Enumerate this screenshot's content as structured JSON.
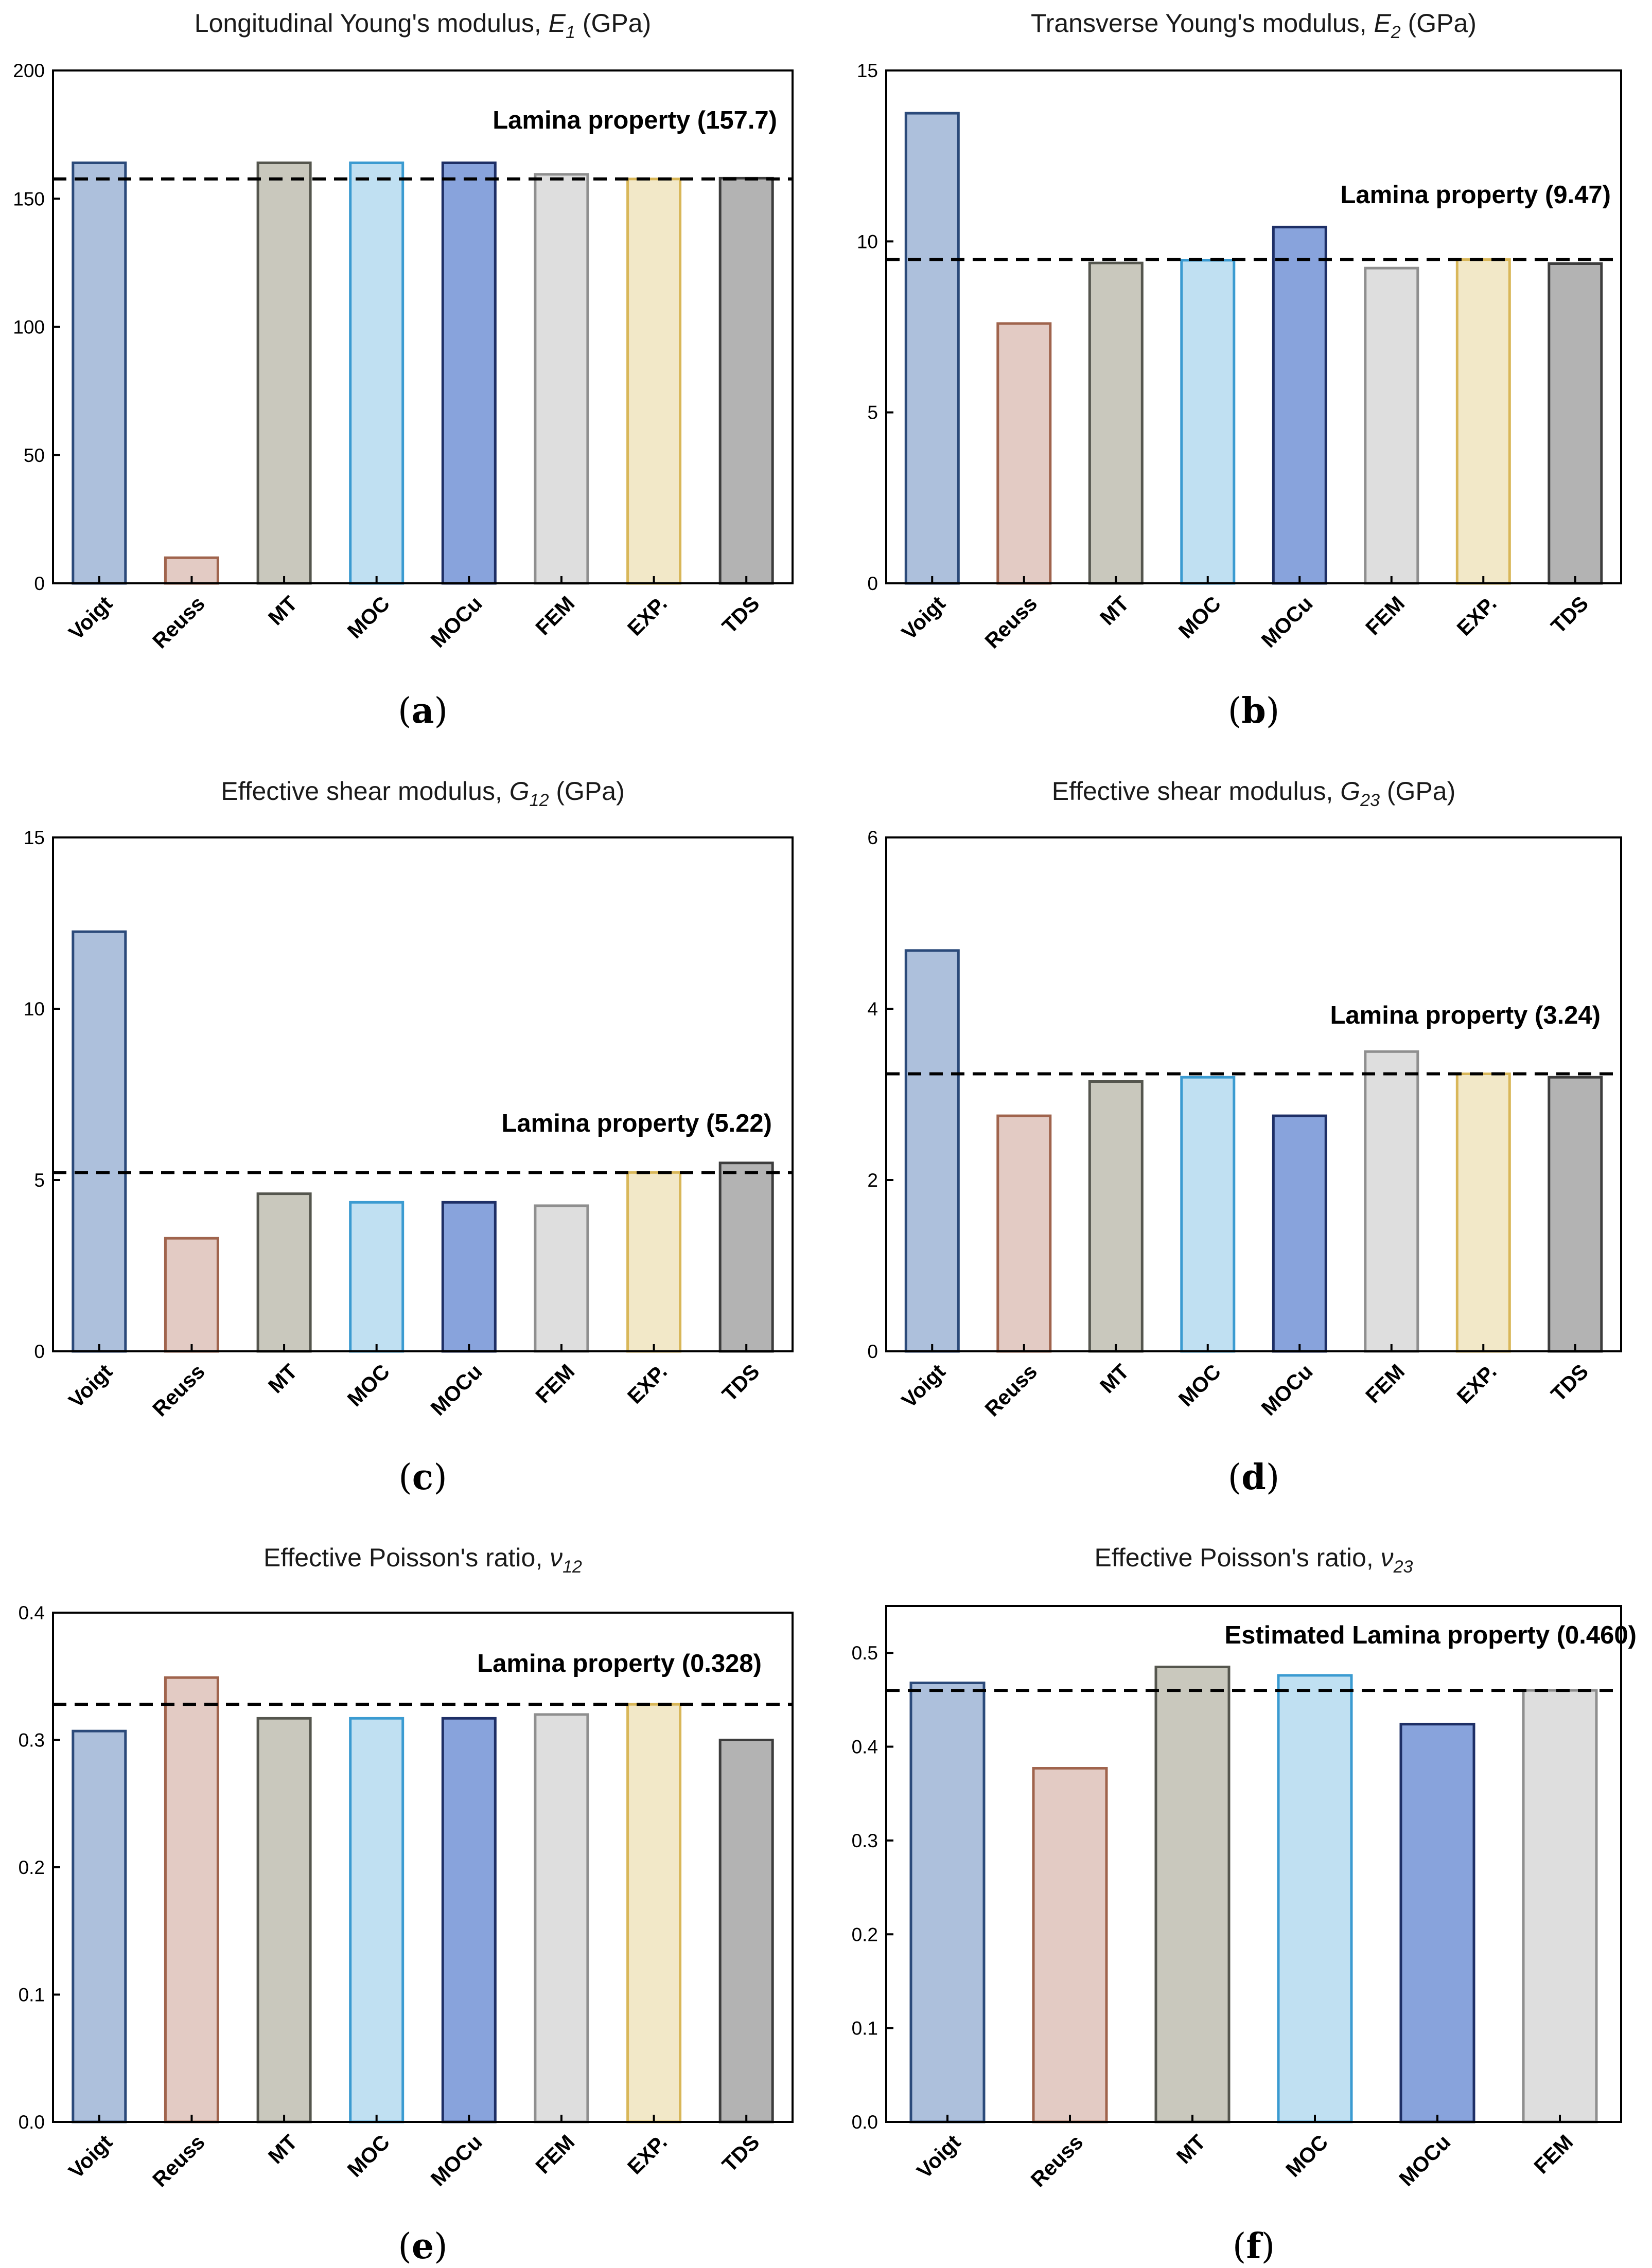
{
  "chart_data": [
    {
      "panel": "a",
      "type": "bar",
      "title": "Longitudinal Young's modulus, ",
      "title_sym": "E",
      "title_sub": "1",
      "title_suffix": " (GPa)",
      "categories": [
        "Voigt",
        "Reuss",
        "MT",
        "MOC",
        "MOCu",
        "FEM",
        "EXP.",
        "TDS"
      ],
      "values": [
        164,
        10,
        164,
        164,
        164,
        159.5,
        157.7,
        158
      ],
      "ylim": [
        0,
        200
      ],
      "yticks": [
        0,
        50,
        100,
        150,
        200
      ],
      "ytick_labels": [
        "0",
        "50",
        "100",
        "150",
        "200"
      ],
      "reference": 157.7,
      "reference_label": "Lamina property (157.7)",
      "label_prefix": "(",
      "label_bold": "a",
      "label_suffix": ")",
      "colors": [
        [
          "#adc0dc",
          "#2b4a7a"
        ],
        [
          "#e3cbc4",
          "#a0644d"
        ],
        [
          "#c9c8bd",
          "#55564e"
        ],
        [
          "#c0e0f2",
          "#3b9bd1"
        ],
        [
          "#88a3dc",
          "#1e2f66"
        ],
        [
          "#dedede",
          "#8f8f8f"
        ],
        [
          "#f2e8c8",
          "#d9b759"
        ],
        [
          "#b3b3b3",
          "#3d3d3d"
        ]
      ]
    },
    {
      "panel": "b",
      "type": "bar",
      "title": "Transverse Young's modulus, ",
      "title_sym": "E",
      "title_sub": "2",
      "title_suffix": " (GPa)",
      "categories": [
        "Voigt",
        "Reuss",
        "MT",
        "MOC",
        "MOCu",
        "FEM",
        "EXP.",
        "TDS"
      ],
      "values": [
        13.75,
        7.6,
        9.37,
        9.45,
        10.42,
        9.22,
        9.47,
        9.35
      ],
      "ylim": [
        0,
        15
      ],
      "yticks": [
        0,
        5,
        10,
        15
      ],
      "ytick_labels": [
        "0",
        "5",
        "10",
        "15"
      ],
      "reference": 9.47,
      "reference_label": "Lamina property (9.47)",
      "label_prefix": "(",
      "label_bold": "b",
      "label_suffix": ")",
      "colors": [
        [
          "#adc0dc",
          "#2b4a7a"
        ],
        [
          "#e3cbc4",
          "#a0644d"
        ],
        [
          "#c9c8bd",
          "#55564e"
        ],
        [
          "#c0e0f2",
          "#3b9bd1"
        ],
        [
          "#88a3dc",
          "#1e2f66"
        ],
        [
          "#dedede",
          "#8f8f8f"
        ],
        [
          "#f2e8c8",
          "#d9b759"
        ],
        [
          "#b3b3b3",
          "#3d3d3d"
        ]
      ]
    },
    {
      "panel": "c",
      "type": "bar",
      "title": "Effective shear modulus, ",
      "title_sym": "G",
      "title_sub": "12",
      "title_suffix": " (GPa)",
      "categories": [
        "Voigt",
        "Reuss",
        "MT",
        "MOC",
        "MOCu",
        "FEM",
        "EXP.",
        "TDS"
      ],
      "values": [
        12.25,
        3.3,
        4.6,
        4.35,
        4.35,
        4.25,
        5.22,
        5.5
      ],
      "ylim": [
        0,
        15
      ],
      "yticks": [
        0,
        5,
        10,
        15
      ],
      "ytick_labels": [
        "0",
        "5",
        "10",
        "15"
      ],
      "reference": 5.22,
      "reference_label": "Lamina property (5.22)",
      "label_prefix": "(",
      "label_bold": "c",
      "label_suffix": ")",
      "colors": [
        [
          "#adc0dc",
          "#2b4a7a"
        ],
        [
          "#e3cbc4",
          "#a0644d"
        ],
        [
          "#c9c8bd",
          "#55564e"
        ],
        [
          "#c0e0f2",
          "#3b9bd1"
        ],
        [
          "#88a3dc",
          "#1e2f66"
        ],
        [
          "#dedede",
          "#8f8f8f"
        ],
        [
          "#f2e8c8",
          "#d9b759"
        ],
        [
          "#b3b3b3",
          "#3d3d3d"
        ]
      ]
    },
    {
      "panel": "d",
      "type": "bar",
      "title": "Effective shear modulus, ",
      "title_sym": "G",
      "title_sub": "23",
      "title_suffix": " (GPa)",
      "categories": [
        "Voigt",
        "Reuss",
        "MT",
        "MOC",
        "MOCu",
        "FEM",
        "EXP.",
        "TDS"
      ],
      "values": [
        4.68,
        2.75,
        3.15,
        3.2,
        2.75,
        3.5,
        3.24,
        3.2
      ],
      "ylim": [
        0,
        6
      ],
      "yticks": [
        0,
        2,
        4,
        6
      ],
      "ytick_labels": [
        "0",
        "2",
        "4",
        "6"
      ],
      "reference": 3.24,
      "reference_label": "Lamina property (3.24)",
      "label_prefix": "(",
      "label_bold": "d",
      "label_suffix": ")",
      "colors": [
        [
          "#adc0dc",
          "#2b4a7a"
        ],
        [
          "#e3cbc4",
          "#a0644d"
        ],
        [
          "#c9c8bd",
          "#55564e"
        ],
        [
          "#c0e0f2",
          "#3b9bd1"
        ],
        [
          "#88a3dc",
          "#1e2f66"
        ],
        [
          "#dedede",
          "#8f8f8f"
        ],
        [
          "#f2e8c8",
          "#d9b759"
        ],
        [
          "#b3b3b3",
          "#3d3d3d"
        ]
      ]
    },
    {
      "panel": "e",
      "type": "bar",
      "title": "Effective Poisson's ratio, ",
      "title_sym": "ν",
      "title_sub": "12",
      "title_suffix": "",
      "categories": [
        "Voigt",
        "Reuss",
        "MT",
        "MOC",
        "MOCu",
        "FEM",
        "EXP.",
        "TDS"
      ],
      "values": [
        0.307,
        0.349,
        0.317,
        0.317,
        0.317,
        0.32,
        0.328,
        0.3
      ],
      "ylim": [
        0,
        0.4
      ],
      "yticks": [
        0,
        0.1,
        0.2,
        0.3,
        0.4
      ],
      "ytick_labels": [
        "0.0",
        "0.1",
        "0.2",
        "0.3",
        "0.4"
      ],
      "reference": 0.328,
      "reference_label": "Lamina property (0.328)",
      "label_prefix": "(",
      "label_bold": "e",
      "label_suffix": ")",
      "colors": [
        [
          "#adc0dc",
          "#2b4a7a"
        ],
        [
          "#e3cbc4",
          "#a0644d"
        ],
        [
          "#c9c8bd",
          "#55564e"
        ],
        [
          "#c0e0f2",
          "#3b9bd1"
        ],
        [
          "#88a3dc",
          "#1e2f66"
        ],
        [
          "#dedede",
          "#8f8f8f"
        ],
        [
          "#f2e8c8",
          "#d9b759"
        ],
        [
          "#b3b3b3",
          "#3d3d3d"
        ]
      ]
    },
    {
      "panel": "f",
      "type": "bar",
      "title": "Effective Poisson's ratio, ",
      "title_sym": "ν",
      "title_sub": "23",
      "title_suffix": "",
      "categories": [
        "Voigt",
        "Reuss",
        "MT",
        "MOC",
        "MOCu",
        "FEM"
      ],
      "values": [
        0.468,
        0.377,
        0.485,
        0.476,
        0.424,
        0.46
      ],
      "ylim": [
        0,
        0.55
      ],
      "yticks": [
        0,
        0.1,
        0.2,
        0.3,
        0.4,
        0.5
      ],
      "ytick_labels": [
        "0.0",
        "0.1",
        "0.2",
        "0.3",
        "0.4",
        "0.5"
      ],
      "reference": 0.46,
      "reference_label": "Estimated Lamina property (0.460)",
      "label_prefix": "(",
      "label_bold": "f",
      "label_suffix": ")",
      "colors": [
        [
          "#adc0dc",
          "#2b4a7a"
        ],
        [
          "#e3cbc4",
          "#a0644d"
        ],
        [
          "#c9c8bd",
          "#55564e"
        ],
        [
          "#c0e0f2",
          "#3b9bd1"
        ],
        [
          "#88a3dc",
          "#1e2f66"
        ],
        [
          "#dedede",
          "#8f8f8f"
        ]
      ]
    }
  ]
}
